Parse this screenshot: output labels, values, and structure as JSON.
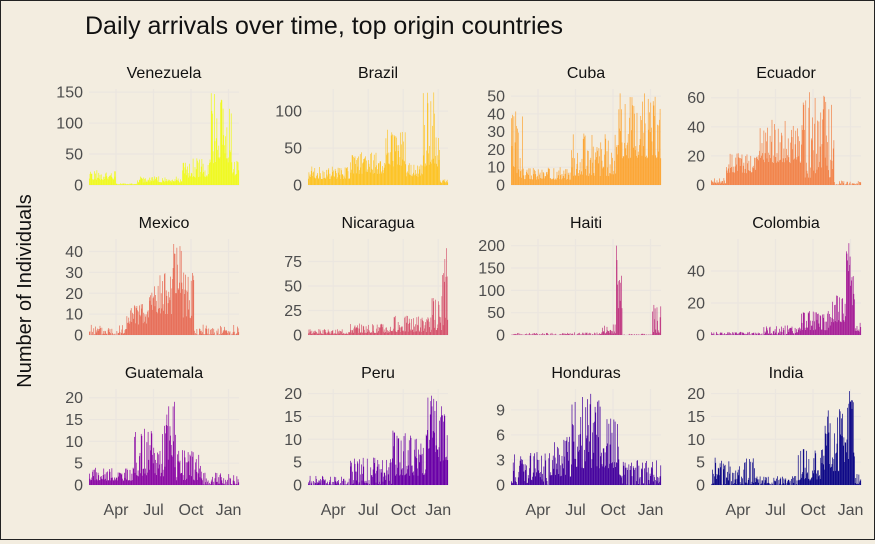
{
  "chart_data": {
    "type": "bar",
    "title": "Daily arrivals over time, top origin countries",
    "xlabel": "",
    "ylabel": "Number of Individuals",
    "layout": "facet-grid",
    "grid": true,
    "x_tick_labels": [
      "Apr",
      "Jul",
      "Oct",
      "Jan"
    ],
    "panels": [
      {
        "name": "Venezuela",
        "color": "#f0f921",
        "ylim": [
          0,
          155
        ],
        "yticks": [
          0,
          50,
          100,
          150
        ],
        "segments": [
          [
            0.0,
            0.18,
            8,
            24
          ],
          [
            0.18,
            0.32,
            1,
            3
          ],
          [
            0.32,
            0.62,
            4,
            14
          ],
          [
            0.62,
            0.8,
            12,
            45
          ],
          [
            0.8,
            0.95,
            35,
            150
          ],
          [
            0.95,
            1.0,
            15,
            40
          ]
        ]
      },
      {
        "name": "Brazil",
        "color": "#fdc427",
        "ylim": [
          0,
          130
        ],
        "yticks": [
          0,
          50,
          100
        ],
        "segments": [
          [
            0.0,
            0.3,
            8,
            25
          ],
          [
            0.3,
            0.55,
            15,
            45
          ],
          [
            0.55,
            0.7,
            25,
            75
          ],
          [
            0.7,
            0.82,
            10,
            30
          ],
          [
            0.82,
            0.94,
            25,
            128
          ],
          [
            0.94,
            1.0,
            3,
            8
          ]
        ]
      },
      {
        "name": "Cuba",
        "color": "#fca636",
        "ylim": [
          0,
          54
        ],
        "yticks": [
          0,
          10,
          20,
          30,
          40,
          50
        ],
        "segments": [
          [
            0.0,
            0.08,
            4,
            42
          ],
          [
            0.08,
            0.4,
            3,
            10
          ],
          [
            0.4,
            0.7,
            5,
            30
          ],
          [
            0.7,
            1.0,
            15,
            52
          ]
        ]
      },
      {
        "name": "Ecuador",
        "color": "#f2844b",
        "ylim": [
          0,
          66
        ],
        "yticks": [
          0,
          20,
          40,
          60
        ],
        "segments": [
          [
            0.0,
            0.1,
            1,
            5
          ],
          [
            0.1,
            0.3,
            8,
            22
          ],
          [
            0.3,
            0.6,
            15,
            45
          ],
          [
            0.6,
            0.82,
            5,
            64
          ],
          [
            0.82,
            1.0,
            0,
            3
          ]
        ]
      },
      {
        "name": "Mexico",
        "color": "#e76f5a",
        "ylim": [
          0,
          46
        ],
        "yticks": [
          0,
          10,
          20,
          30,
          40
        ],
        "segments": [
          [
            0.0,
            0.25,
            0,
            5
          ],
          [
            0.25,
            0.4,
            5,
            15
          ],
          [
            0.4,
            0.55,
            10,
            30
          ],
          [
            0.55,
            0.62,
            20,
            44
          ],
          [
            0.62,
            0.7,
            8,
            30
          ],
          [
            0.7,
            1.0,
            0,
            5
          ]
        ]
      },
      {
        "name": "Nicaragua",
        "color": "#d5546e",
        "ylim": [
          0,
          98
        ],
        "yticks": [
          0,
          25,
          50,
          75
        ],
        "segments": [
          [
            0.0,
            0.3,
            1,
            6
          ],
          [
            0.3,
            0.6,
            2,
            12
          ],
          [
            0.6,
            0.88,
            3,
            20
          ],
          [
            0.88,
            0.96,
            5,
            40
          ],
          [
            0.96,
            1.0,
            10,
            95
          ]
        ]
      },
      {
        "name": "Haiti",
        "color": "#c03a83",
        "ylim": [
          0,
          215
        ],
        "yticks": [
          0,
          50,
          100,
          150,
          200
        ],
        "segments": [
          [
            0.0,
            0.4,
            0,
            5
          ],
          [
            0.4,
            0.6,
            0,
            6
          ],
          [
            0.6,
            0.7,
            3,
            25
          ],
          [
            0.7,
            0.74,
            60,
            205
          ],
          [
            0.74,
            0.94,
            0,
            3
          ],
          [
            0.94,
            1.0,
            5,
            70
          ]
        ]
      },
      {
        "name": "Colombia",
        "color": "#a62098",
        "ylim": [
          0,
          60
        ],
        "yticks": [
          0,
          20,
          40
        ],
        "segments": [
          [
            0.0,
            0.35,
            0,
            2
          ],
          [
            0.35,
            0.6,
            0,
            6
          ],
          [
            0.6,
            0.8,
            3,
            15
          ],
          [
            0.8,
            0.9,
            8,
            25
          ],
          [
            0.9,
            0.96,
            15,
            58
          ],
          [
            0.96,
            1.0,
            2,
            8
          ]
        ]
      },
      {
        "name": "Guatemala",
        "color": "#8b0aa5",
        "ylim": [
          0,
          22
        ],
        "yticks": [
          0,
          5,
          10,
          15,
          20
        ],
        "segments": [
          [
            0.0,
            0.3,
            1,
            4
          ],
          [
            0.3,
            0.5,
            2,
            13
          ],
          [
            0.5,
            0.58,
            4,
            21
          ],
          [
            0.58,
            0.75,
            1,
            8
          ],
          [
            0.75,
            1.0,
            0,
            3
          ]
        ]
      },
      {
        "name": "Peru",
        "color": "#6a00a8",
        "ylim": [
          0,
          21
        ],
        "yticks": [
          0,
          5,
          10,
          15,
          20
        ],
        "segments": [
          [
            0.0,
            0.3,
            0,
            2
          ],
          [
            0.3,
            0.6,
            0,
            6
          ],
          [
            0.6,
            0.85,
            2,
            12
          ],
          [
            0.85,
            1.0,
            5,
            20
          ]
        ]
      },
      {
        "name": "Honduras",
        "color": "#46039f",
        "ylim": [
          0,
          11.5
        ],
        "yticks": [
          0,
          3,
          6,
          9
        ],
        "segments": [
          [
            0.0,
            0.25,
            0,
            4
          ],
          [
            0.25,
            0.4,
            1,
            6
          ],
          [
            0.4,
            0.62,
            2,
            11
          ],
          [
            0.62,
            0.72,
            2,
            8
          ],
          [
            0.72,
            1.0,
            0,
            3
          ]
        ]
      },
      {
        "name": "India",
        "color": "#0d0887",
        "ylim": [
          0,
          21
        ],
        "yticks": [
          0,
          5,
          10,
          15,
          20
        ],
        "segments": [
          [
            0.0,
            0.3,
            0,
            6
          ],
          [
            0.3,
            0.58,
            0,
            2
          ],
          [
            0.58,
            0.75,
            1,
            8
          ],
          [
            0.75,
            0.88,
            3,
            17
          ],
          [
            0.88,
            0.96,
            5,
            21
          ],
          [
            0.96,
            1.0,
            0,
            3
          ]
        ]
      }
    ]
  }
}
